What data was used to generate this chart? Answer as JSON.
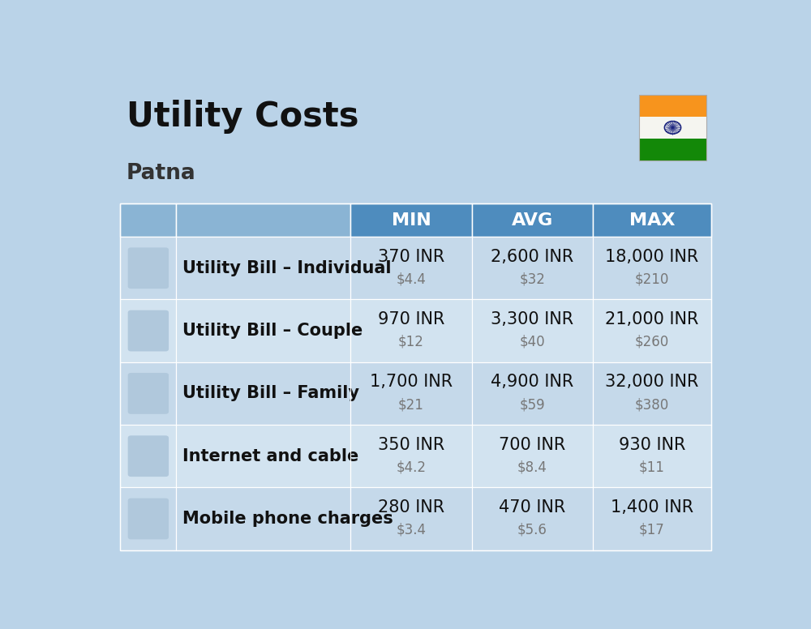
{
  "title": "Utility Costs",
  "subtitle": "Patna",
  "background_color": "#bad3e8",
  "header_bg_color": "#4e8cbe",
  "header_text_color": "#ffffff",
  "row_bg_even": "#c5d9ea",
  "row_bg_odd": "#d2e3f0",
  "headers": [
    "",
    "",
    "MIN",
    "AVG",
    "MAX"
  ],
  "rows": [
    {
      "label": "Utility Bill – Individual",
      "min_inr": "370 INR",
      "min_usd": "$4.4",
      "avg_inr": "2,600 INR",
      "avg_usd": "$32",
      "max_inr": "18,000 INR",
      "max_usd": "$210"
    },
    {
      "label": "Utility Bill – Couple",
      "min_inr": "970 INR",
      "min_usd": "$12",
      "avg_inr": "3,300 INR",
      "avg_usd": "$40",
      "max_inr": "21,000 INR",
      "max_usd": "$260"
    },
    {
      "label": "Utility Bill – Family",
      "min_inr": "1,700 INR",
      "min_usd": "$21",
      "avg_inr": "4,900 INR",
      "avg_usd": "$59",
      "max_inr": "32,000 INR",
      "max_usd": "$380"
    },
    {
      "label": "Internet and cable",
      "min_inr": "350 INR",
      "min_usd": "$4.2",
      "avg_inr": "700 INR",
      "avg_usd": "$8.4",
      "max_inr": "930 INR",
      "max_usd": "$11"
    },
    {
      "label": "Mobile phone charges",
      "min_inr": "280 INR",
      "min_usd": "$3.4",
      "avg_inr": "470 INR",
      "avg_usd": "$5.6",
      "max_inr": "1,400 INR",
      "max_usd": "$17"
    }
  ],
  "flag_colors": [
    "#f7941d",
    "#f5f5f0",
    "#138808"
  ],
  "title_fontsize": 30,
  "subtitle_fontsize": 19,
  "header_fontsize": 16,
  "label_fontsize": 15,
  "value_fontsize": 15,
  "usd_fontsize": 12
}
